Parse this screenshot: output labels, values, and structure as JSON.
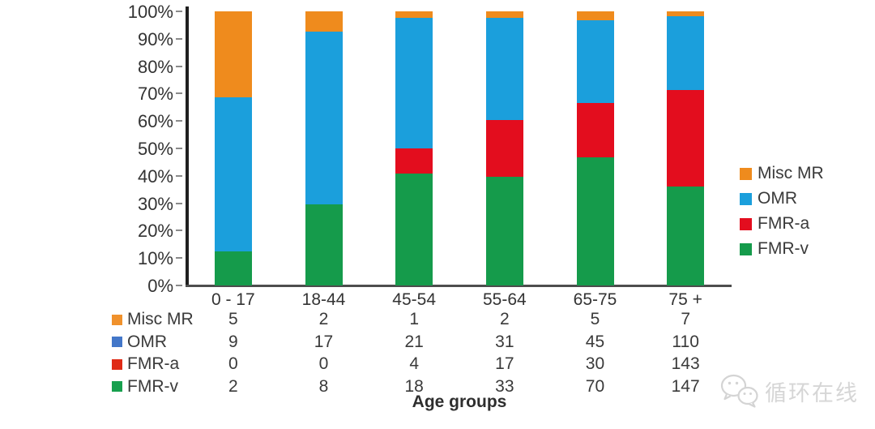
{
  "chart_data": {
    "type": "bar",
    "subtype": "100-percent-stacked-column",
    "title": "",
    "xlabel": "Age groups",
    "ylabel": "",
    "ylim": [
      0,
      100
    ],
    "grid": false,
    "legend_position": "right",
    "categories": [
      "0 - 17",
      "18-44",
      "45-54",
      "55-64",
      "65-75",
      "75 +"
    ],
    "series": [
      {
        "name": "Misc MR",
        "color": "#EF8B1D",
        "values": [
          5,
          2,
          1,
          2,
          5,
          7
        ]
      },
      {
        "name": "OMR",
        "color": "#1B9FDC",
        "values": [
          9,
          17,
          21,
          31,
          45,
          110
        ]
      },
      {
        "name": "FMR-a",
        "color": "#E30D1E",
        "values": [
          0,
          0,
          4,
          17,
          30,
          143
        ]
      },
      {
        "name": "FMR-v",
        "color": "#159B4B",
        "values": [
          2,
          8,
          18,
          33,
          70,
          147
        ]
      }
    ],
    "stack_order_bottom_to_top": [
      "FMR-v",
      "FMR-a",
      "OMR",
      "Misc MR"
    ],
    "y_tick_labels": [
      "0%",
      "10%",
      "20%",
      "30%",
      "40%",
      "50%",
      "60%",
      "70%",
      "80%",
      "90%",
      "100%"
    ],
    "legend_items": [
      {
        "label": "Misc MR",
        "color": "#EF8B1D"
      },
      {
        "label": "OMR",
        "color": "#1B9FDC"
      },
      {
        "label": "FMR-a",
        "color": "#E30D1E"
      },
      {
        "label": "FMR-v",
        "color": "#159B4B"
      }
    ]
  },
  "data_table": {
    "rows": [
      {
        "label": "Misc MR",
        "key_color": "#F0912C",
        "values": [
          "5",
          "2",
          "1",
          "2",
          "5",
          "7"
        ]
      },
      {
        "label": "OMR",
        "key_color": "#4377C9",
        "values": [
          "9",
          "17",
          "21",
          "31",
          "45",
          "110"
        ]
      },
      {
        "label": "FMR-a",
        "key_color": "#DF2B16",
        "values": [
          "0",
          "0",
          "4",
          "17",
          "30",
          "143"
        ]
      },
      {
        "label": "FMR-v",
        "key_color": "#17A04E",
        "values": [
          "2",
          "8",
          "18",
          "33",
          "70",
          "147"
        ]
      }
    ]
  },
  "watermark": {
    "text": "循环在线",
    "logo": "wechat-chat-bubbles-icon",
    "color": "#D6D6D6"
  }
}
